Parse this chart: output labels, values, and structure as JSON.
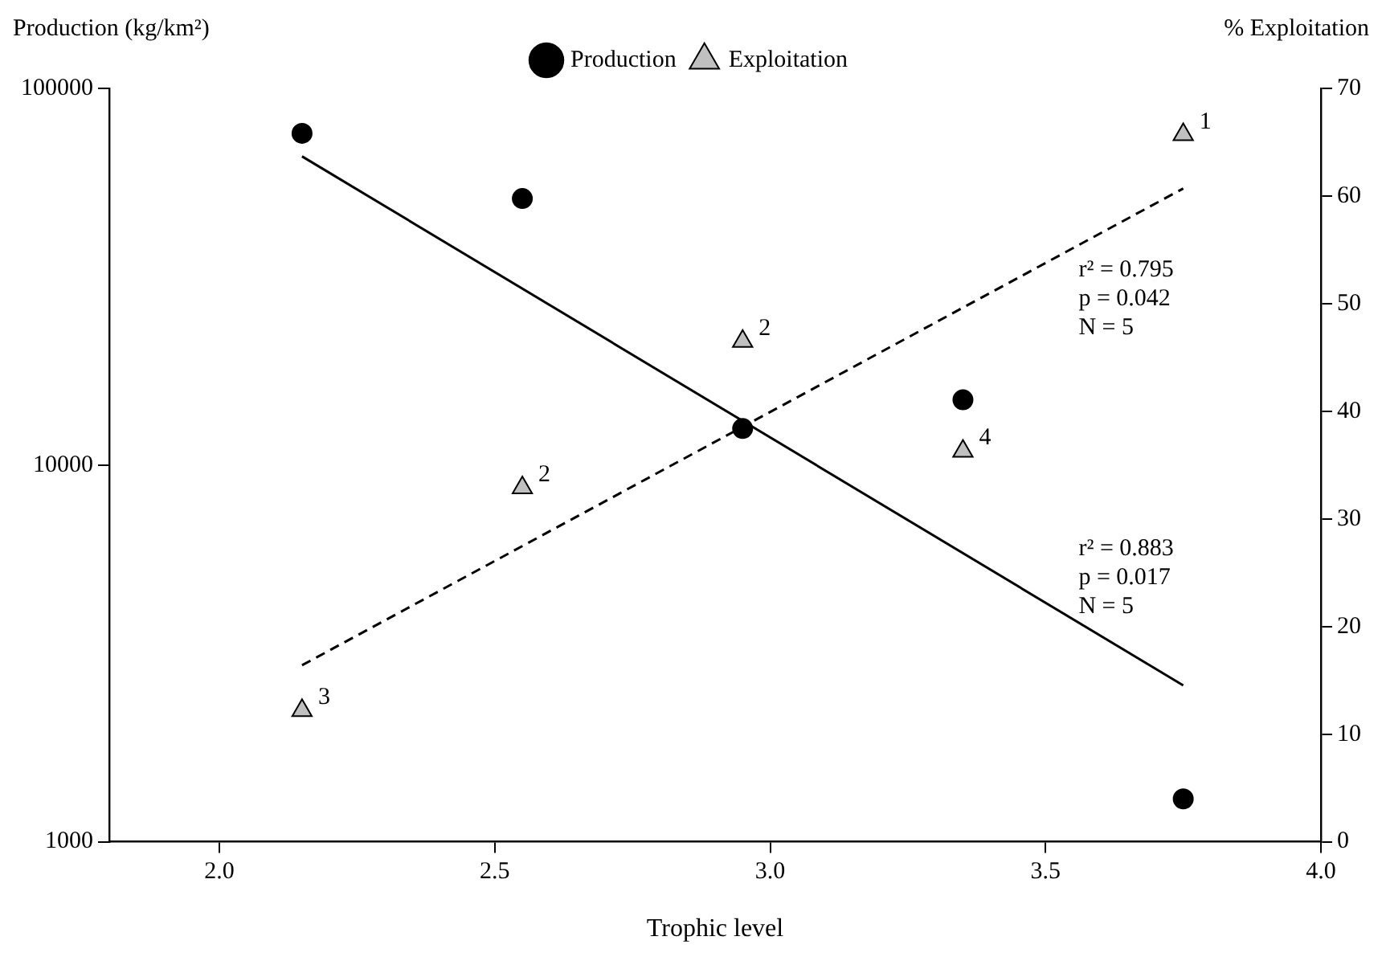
{
  "chart_data": {
    "type": "scatter",
    "xlabel": "Trophic level",
    "ylabel": "Production (kg/km²)",
    "y2label": "% Exploitation",
    "xlim": [
      1.8,
      4.0
    ],
    "xticks": [
      {
        "value": 2.0,
        "label": "2.0"
      },
      {
        "value": 2.5,
        "label": "2.5"
      },
      {
        "value": 3.0,
        "label": "3.0"
      },
      {
        "value": 3.5,
        "label": "3.5"
      },
      {
        "value": 4.0,
        "label": "4.0"
      }
    ],
    "ylim": [
      1000,
      100000
    ],
    "yticks": [
      1000,
      10000,
      100000
    ],
    "y2lim": [
      0,
      70
    ],
    "y2ticks": [
      0,
      10,
      20,
      30,
      40,
      50,
      60,
      70
    ],
    "log": "y",
    "grid": false,
    "legend": "top",
    "annotations": [
      "r² = 0.795\np = 0.042\nN = 5",
      "r² = 0.883\np = 0.017\nN = 5",
      "3",
      "2",
      "2",
      "4",
      "1"
    ],
    "series": [
      {
        "name": "Production",
        "marker": "circle",
        "color": "#000000",
        "x": [
          2.15,
          2.55,
          2.95,
          3.35,
          3.75
        ],
        "values": [
          76000,
          51000,
          12500,
          14900,
          1300
        ]
      },
      {
        "name": "Exploitation",
        "marker": "triangle",
        "color": "#c0c0c0",
        "axis": "y2",
        "x": [
          2.15,
          2.55,
          2.95,
          3.35,
          3.75
        ],
        "values": [
          12.2,
          32.9,
          46.5,
          36.3,
          65.7
        ]
      },
      {
        "type": "line",
        "marker": "none",
        "line_style": "solid",
        "color": "#000000",
        "x": [
          2.15,
          3.75
        ],
        "values": [
          66000,
          2600
        ]
      },
      {
        "type": "line",
        "marker": "none",
        "line_style": "dashed",
        "color": "#000000",
        "axis": "y2",
        "x": [
          2.15,
          3.75
        ],
        "values": [
          16.4,
          60.7
        ]
      }
    ]
  }
}
